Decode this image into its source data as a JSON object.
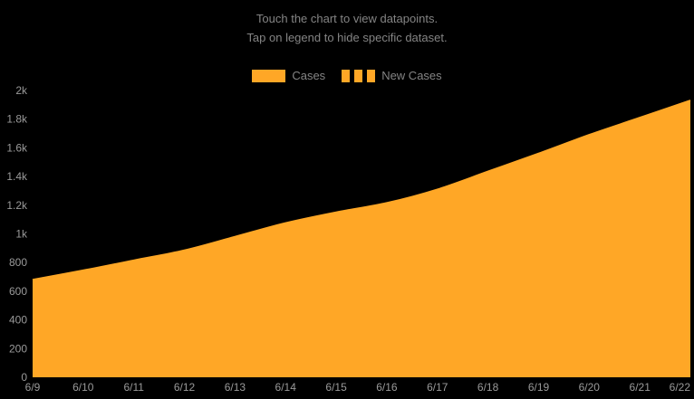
{
  "title": {
    "line1": "Touch the chart to view datapoints.",
    "line2": "Tap on legend to hide specific dataset."
  },
  "legend": [
    {
      "label": "Cases",
      "swatch": "solid"
    },
    {
      "label": "New Cases",
      "swatch": "dashed"
    }
  ],
  "colors": {
    "background": "#000000",
    "accent": "#FFA726",
    "title_text": "#848484",
    "tick_text": "#9a9a9a"
  },
  "chart_data": {
    "type": "area",
    "x": [
      "6/9",
      "6/10",
      "6/11",
      "6/12",
      "6/13",
      "6/14",
      "6/15",
      "6/16",
      "6/17",
      "6/18",
      "6/19",
      "6/20",
      "6/21",
      "6/22"
    ],
    "series": [
      {
        "name": "Cases",
        "visible": true,
        "values": [
          680,
          745,
          815,
          885,
          980,
          1075,
          1150,
          1215,
          1310,
          1435,
          1560,
          1690,
          1810,
          1930
        ]
      },
      {
        "name": "New Cases",
        "visible": false,
        "values": null
      }
    ],
    "title": "",
    "xlabel": "",
    "ylabel": "",
    "ylim": [
      0,
      2000
    ],
    "yticks": [
      0,
      200,
      400,
      600,
      800,
      1000,
      1200,
      1400,
      1600,
      1800,
      2000
    ],
    "ytick_labels": [
      "0",
      "200",
      "400",
      "600",
      "800",
      "1k",
      "1.2k",
      "1.4k",
      "1.6k",
      "1.8k",
      "2k"
    ],
    "grid": false,
    "legend_position": "top"
  }
}
